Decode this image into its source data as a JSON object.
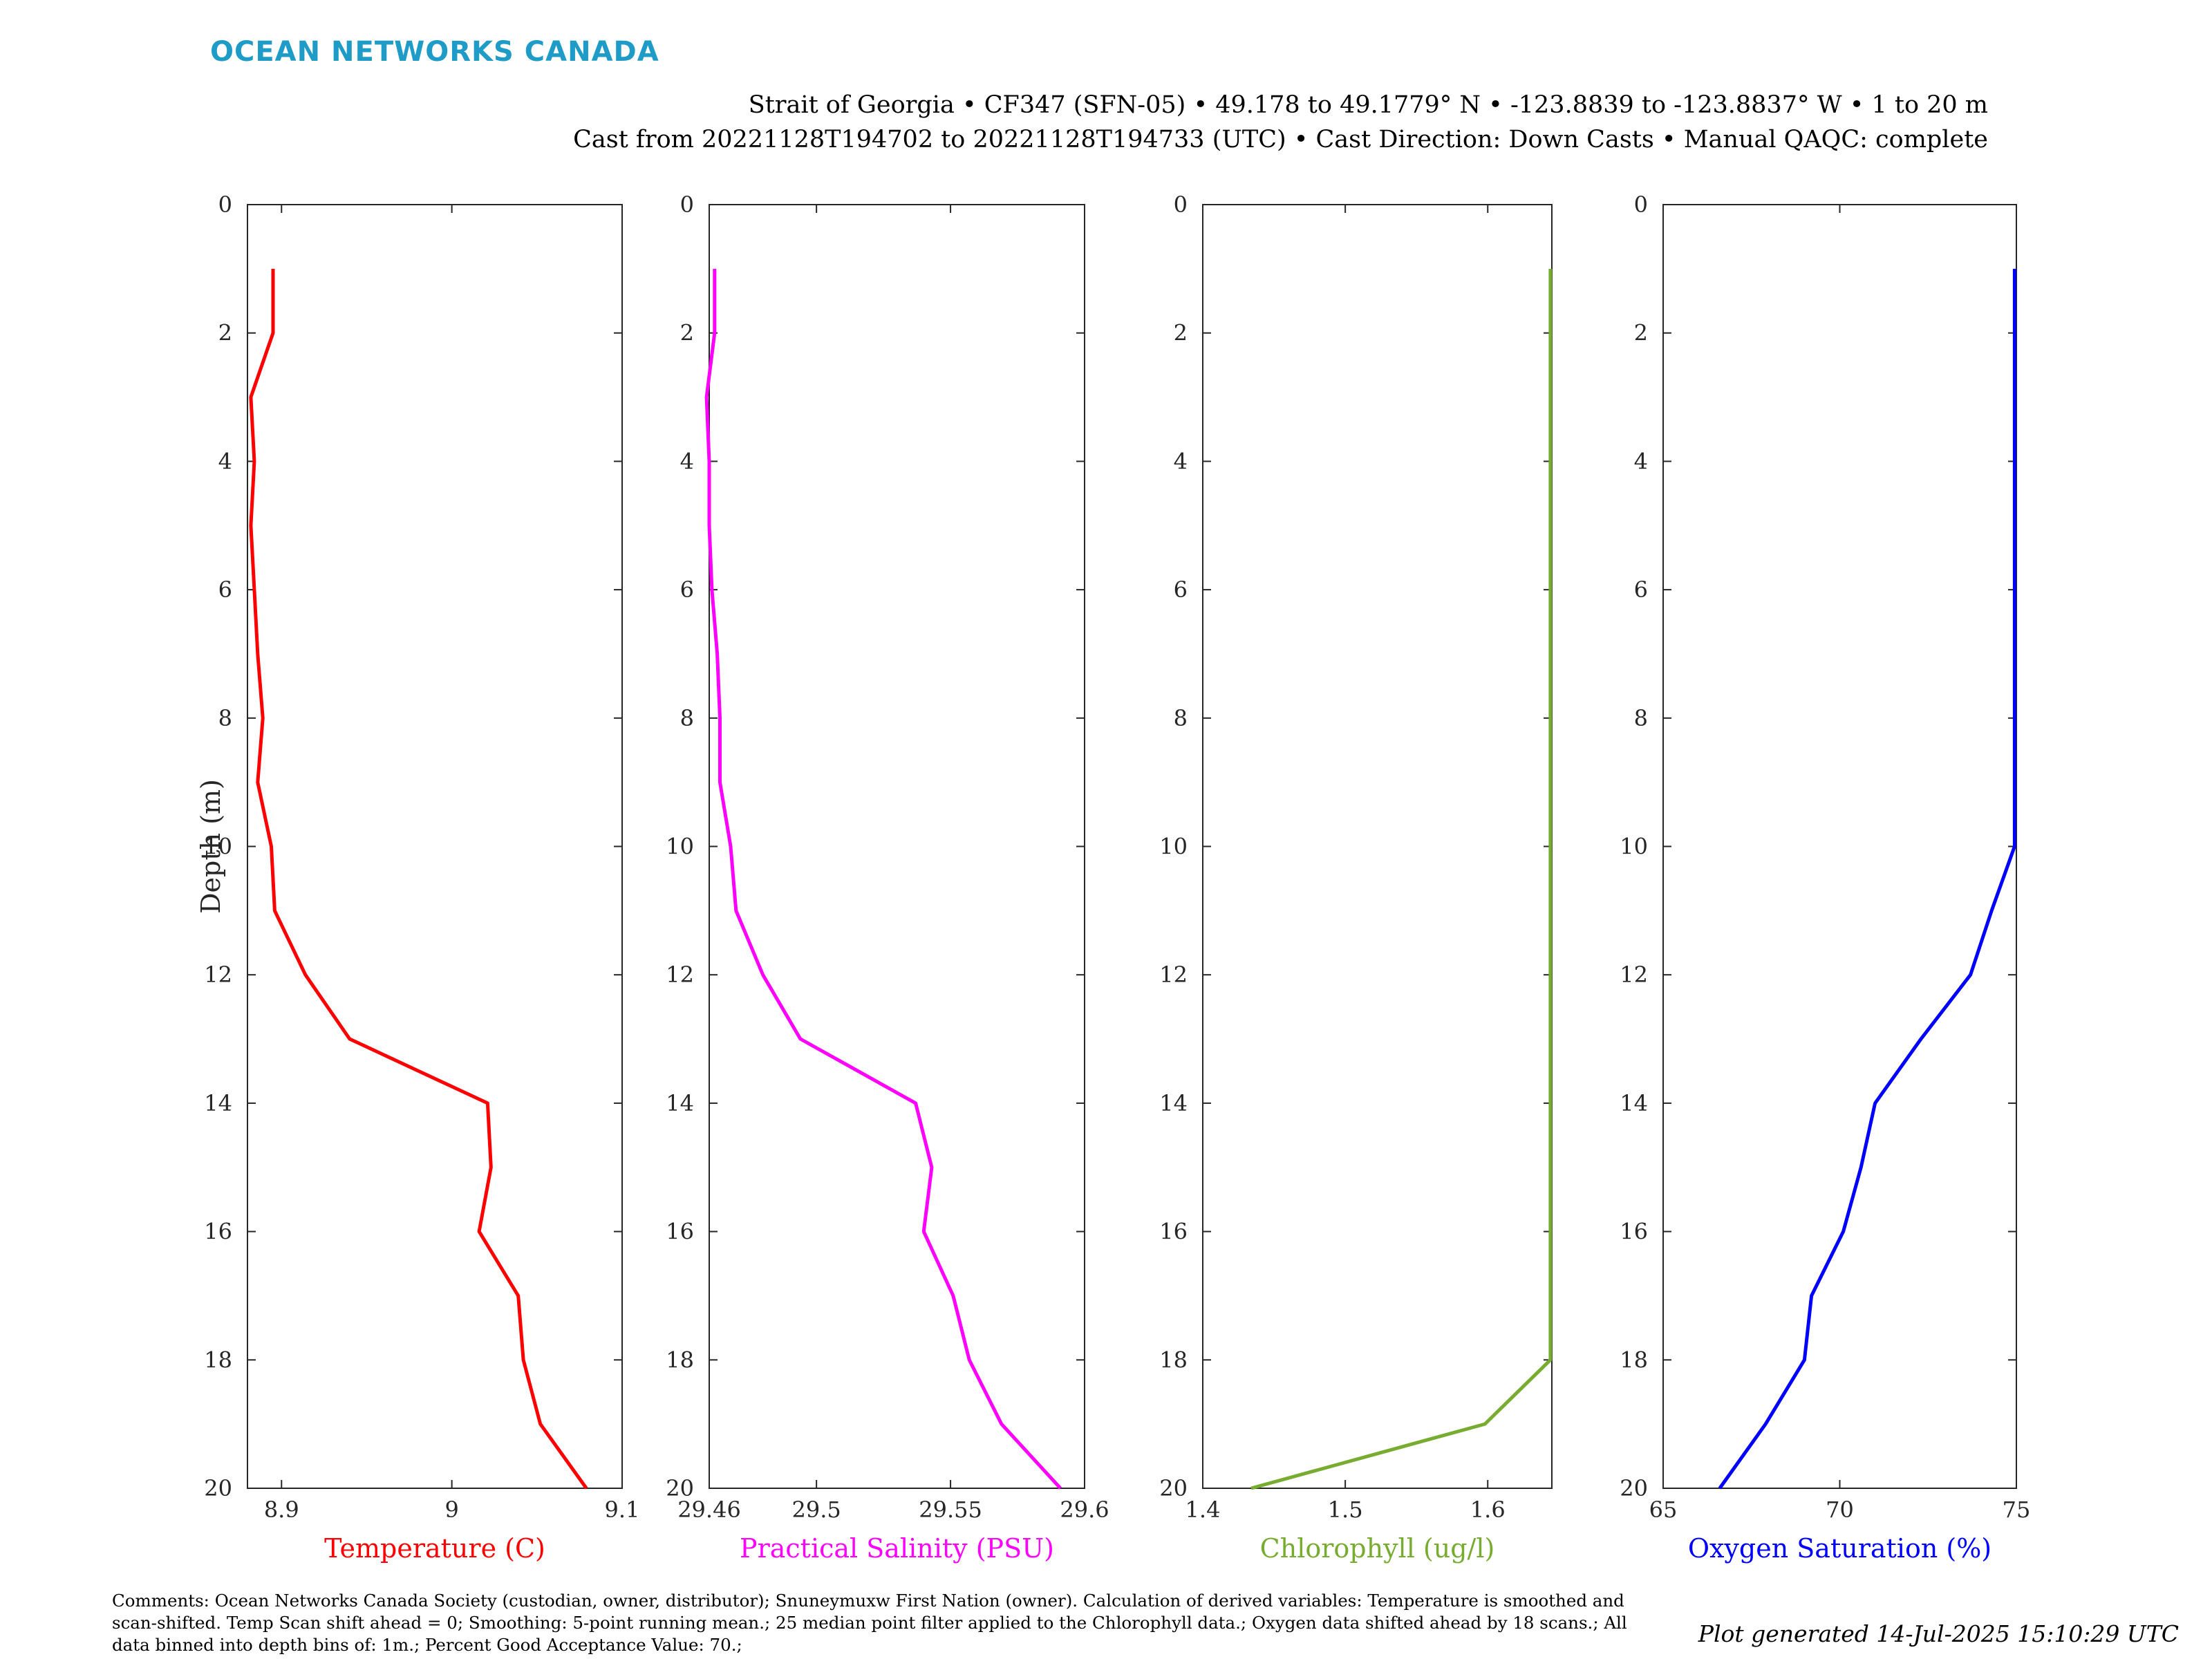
{
  "header": {
    "brand": "OCEAN NETWORKS CANADA",
    "title_line1": "Strait of Georgia • CF347 (SFN-05) • 49.178 to 49.1779° N • -123.8839 to -123.8837° W • 1 to 20 m",
    "title_line2": "Cast from 20221128T194702 to 20221128T194733 (UTC) • Cast Direction: Down Casts • Manual QAQC: complete"
  },
  "footer": {
    "comments": "Comments: Ocean Networks Canada Society (custodian, owner, distributor); Snuneymuxw First Nation (owner). Calculation of derived variables: Temperature is smoothed and scan-shifted. Temp Scan shift ahead = 0; Smoothing: 5-point running mean.; 25 median point filter applied to the Chlorophyll data.; Oxygen data shifted ahead by 18 scans.; All data binned into depth bins of: 1m.; Percent Good Acceptance Value: 70.;",
    "generated": "Plot generated 14-Jul-2025 15:10:29 UTC"
  },
  "chart_data": [
    {
      "type": "line",
      "title": "",
      "xlabel": "Temperature (C)",
      "ylabel": "Depth (m)",
      "color": "#ff0000",
      "xlim": [
        8.88,
        9.1
      ],
      "ylim": [
        0,
        20
      ],
      "y_reversed": true,
      "xticks": [
        8.9,
        9,
        9.1
      ],
      "xtick_labels": [
        "8.9",
        "9",
        "9.1"
      ],
      "yticks": [
        0,
        2,
        4,
        6,
        8,
        10,
        12,
        14,
        16,
        18,
        20
      ],
      "series": [
        {
          "x": [
            8.895,
            8.895,
            8.882,
            8.884,
            8.882,
            8.884,
            8.886,
            8.889,
            8.886,
            8.894,
            8.896,
            8.914,
            8.94,
            9.021,
            9.023,
            9.016,
            9.039,
            9.042,
            9.052,
            9.079
          ],
          "y": [
            1,
            2,
            3,
            4,
            5,
            6,
            7,
            8,
            9,
            10,
            11,
            12,
            13,
            14,
            15,
            16,
            17,
            18,
            19,
            20
          ]
        }
      ]
    },
    {
      "type": "line",
      "title": "",
      "xlabel": "Practical Salinity (PSU)",
      "ylabel": "",
      "color": "#ff00ff",
      "xlim": [
        29.46,
        29.6
      ],
      "ylim": [
        0,
        20
      ],
      "y_reversed": true,
      "xticks": [
        29.46,
        29.5,
        29.55,
        29.6
      ],
      "xtick_labels": [
        "29.46",
        "29.5",
        "29.55",
        "29.6"
      ],
      "yticks": [
        0,
        2,
        4,
        6,
        8,
        10,
        12,
        14,
        16,
        18,
        20
      ],
      "series": [
        {
          "x": [
            29.462,
            29.462,
            29.459,
            29.46,
            29.46,
            29.461,
            29.463,
            29.464,
            29.464,
            29.468,
            29.47,
            29.48,
            29.494,
            29.537,
            29.543,
            29.54,
            29.551,
            29.557,
            29.569,
            29.591
          ],
          "y": [
            1,
            2,
            3,
            4,
            5,
            6,
            7,
            8,
            9,
            10,
            11,
            12,
            13,
            14,
            15,
            16,
            17,
            18,
            19,
            20
          ]
        }
      ]
    },
    {
      "type": "line",
      "title": "",
      "xlabel": "Chlorophyll (ug/l)",
      "ylabel": "",
      "color": "#77ac30",
      "xlim": [
        1.4,
        1.645
      ],
      "ylim": [
        0,
        20
      ],
      "y_reversed": true,
      "xticks": [
        1.4,
        1.5,
        1.6
      ],
      "xtick_labels": [
        "1.4",
        "1.5",
        "1.6"
      ],
      "yticks": [
        0,
        2,
        4,
        6,
        8,
        10,
        12,
        14,
        16,
        18,
        20
      ],
      "series": [
        {
          "x": [
            1.644,
            1.644,
            1.644,
            1.644,
            1.644,
            1.644,
            1.644,
            1.644,
            1.644,
            1.644,
            1.644,
            1.644,
            1.644,
            1.644,
            1.644,
            1.644,
            1.644,
            1.644,
            1.598,
            1.434
          ],
          "y": [
            1,
            2,
            3,
            4,
            5,
            6,
            7,
            8,
            9,
            10,
            11,
            12,
            13,
            14,
            15,
            16,
            17,
            18,
            19,
            20
          ]
        }
      ]
    },
    {
      "type": "line",
      "title": "",
      "xlabel": "Oxygen Saturation (%)",
      "ylabel": "",
      "color": "#0000ff",
      "xlim": [
        65,
        75
      ],
      "ylim": [
        0,
        20
      ],
      "y_reversed": true,
      "xticks": [
        65,
        70,
        75
      ],
      "xtick_labels": [
        "65",
        "70",
        "75"
      ],
      "yticks": [
        0,
        2,
        4,
        6,
        8,
        10,
        12,
        14,
        16,
        18,
        20
      ],
      "series": [
        {
          "x": [
            74.95,
            74.95,
            74.95,
            74.95,
            74.95,
            74.95,
            74.95,
            74.95,
            74.95,
            74.95,
            74.3,
            73.7,
            72.3,
            71.0,
            70.6,
            70.1,
            69.2,
            69.0,
            67.9,
            66.6
          ],
          "y": [
            1,
            2,
            3,
            4,
            5,
            6,
            7,
            8,
            9,
            10,
            11,
            12,
            13,
            14,
            15,
            16,
            17,
            18,
            19,
            20
          ]
        }
      ]
    }
  ]
}
